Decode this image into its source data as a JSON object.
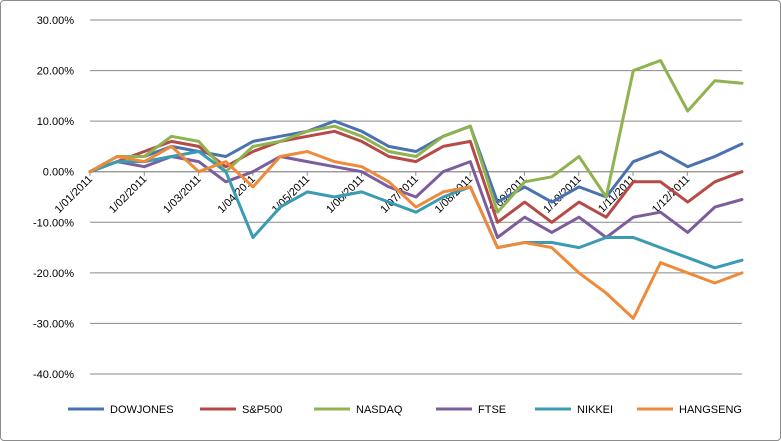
{
  "chart_data": {
    "type": "line",
    "title": "",
    "xlabel": "",
    "ylabel": "",
    "ylim": [
      -40,
      30
    ],
    "y_ticks": [
      "30.00%",
      "20.00%",
      "10.00%",
      "0.00%",
      "-10.00%",
      "-20.00%",
      "-30.00%",
      "-40.00%"
    ],
    "y_tick_values": [
      30,
      20,
      10,
      0,
      -10,
      -20,
      -30,
      -40
    ],
    "x_ticks": [
      "1/01/2011",
      "1/02/2011",
      "1/03/2011",
      "1/04/2011",
      "1/05/2011",
      "1/06/2011",
      "1/07/2011",
      "1/08/2011",
      "1/09/2011",
      "1/10/2011",
      "1/11/2011",
      "1/12/2011"
    ],
    "grid": "horizontal",
    "legend_position": "bottom",
    "x": [
      "1/01/2011",
      "15/01/2011",
      "1/02/2011",
      "15/02/2011",
      "1/03/2011",
      "15/03/2011",
      "1/04/2011",
      "15/04/2011",
      "1/05/2011",
      "15/05/2011",
      "1/06/2011",
      "15/06/2011",
      "1/07/2011",
      "15/07/2011",
      "1/08/2011",
      "15/08/2011",
      "1/09/2011",
      "15/09/2011",
      "1/10/2011",
      "15/10/2011",
      "1/11/2011",
      "15/11/2011",
      "1/12/2011",
      "15/12/2011",
      "31/12/2011"
    ],
    "series": [
      {
        "name": "DOWJONES",
        "color": "#4a72b0",
        "values": [
          0,
          3,
          3,
          5,
          4,
          3,
          6,
          7,
          8,
          10,
          8,
          5,
          4,
          7,
          9,
          -6,
          -3,
          -6,
          -3,
          -5,
          2,
          4,
          1,
          3,
          5.5
        ]
      },
      {
        "name": "S&P500",
        "color": "#b54a47",
        "values": [
          0,
          2,
          4,
          6,
          5,
          1,
          4,
          6,
          7,
          8,
          6,
          3,
          2,
          5,
          6,
          -10,
          -6,
          -10,
          -6,
          -9,
          -2,
          -2,
          -6,
          -2,
          0
        ]
      },
      {
        "name": "NASDAQ",
        "color": "#8fb34f",
        "values": [
          0,
          3,
          3,
          7,
          6,
          0,
          5,
          6,
          8,
          9,
          7,
          4,
          3,
          7,
          9,
          -8,
          -2,
          -1,
          3,
          -5,
          20,
          22,
          12,
          18,
          17.5
        ]
      },
      {
        "name": "FTSE",
        "color": "#7c5e9e",
        "values": [
          0,
          2,
          1,
          3,
          2,
          -2,
          0,
          3,
          2,
          1,
          0,
          -3,
          -5,
          0,
          2,
          -13,
          -9,
          -12,
          -9,
          -13,
          -9,
          -8,
          -12,
          -7,
          -5.5
        ]
      },
      {
        "name": "NIKKEI",
        "color": "#3b9ab4",
        "values": [
          0,
          2,
          2,
          3,
          4,
          0,
          -13,
          -7,
          -4,
          -5,
          -4,
          -6,
          -8,
          -5,
          -3,
          -15,
          -14,
          -14,
          -15,
          -13,
          -13,
          -15,
          -17,
          -19,
          -17.5
        ]
      },
      {
        "name": "HANGSENG",
        "color": "#ee8a3a",
        "values": [
          0,
          3,
          2,
          5,
          0,
          2,
          -3,
          3,
          4,
          2,
          1,
          -2,
          -7,
          -4,
          -3,
          -15,
          -14,
          -15,
          -20,
          -24,
          -29,
          -18,
          -20,
          -22,
          -20
        ]
      }
    ]
  }
}
